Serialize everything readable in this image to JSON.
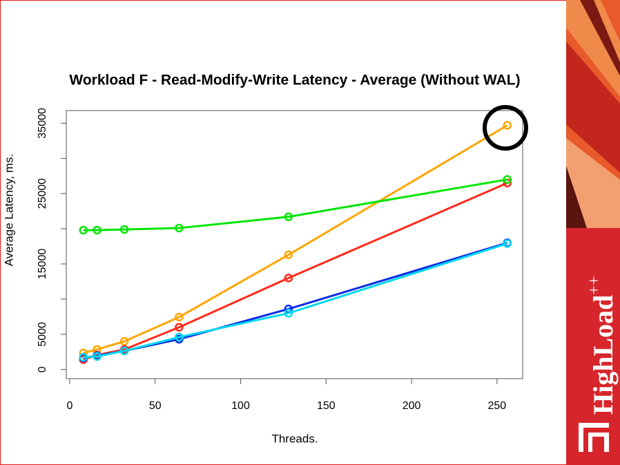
{
  "chart_data": {
    "type": "line",
    "title": "Workload F - Read-Modify-Write Latency - Average (Without WAL)",
    "xlabel": "Threads.",
    "ylabel": "Average Latency, ms.",
    "x": [
      8,
      16,
      32,
      64,
      128,
      256
    ],
    "series": [
      {
        "color": "#ffa500",
        "values": [
          2350,
          2850,
          4000,
          7450,
          16300,
          34700
        ]
      },
      {
        "color": "#ff2a1a",
        "values": [
          1400,
          2050,
          2850,
          6000,
          13000,
          26500
        ]
      },
      {
        "color": "#00e600",
        "values": [
          19800,
          19800,
          19900,
          20100,
          21700,
          27000
        ]
      },
      {
        "color": "#0a2be6",
        "values": [
          1650,
          1950,
          2650,
          4300,
          8600,
          18000
        ]
      },
      {
        "color": "#00d8f0",
        "values": [
          1750,
          1850,
          2650,
          4600,
          8000,
          17900
        ]
      }
    ],
    "xlim": [
      -2,
      265
    ],
    "xticks": [
      0,
      50,
      100,
      150,
      200,
      250
    ],
    "ylim": [
      -1300,
      36800
    ],
    "yticks": [
      0,
      5000,
      15000,
      25000,
      35000
    ],
    "yminorticks": [
      10000,
      20000,
      30000
    ]
  },
  "brand": {
    "name": "HighLoad",
    "sup": "++"
  }
}
